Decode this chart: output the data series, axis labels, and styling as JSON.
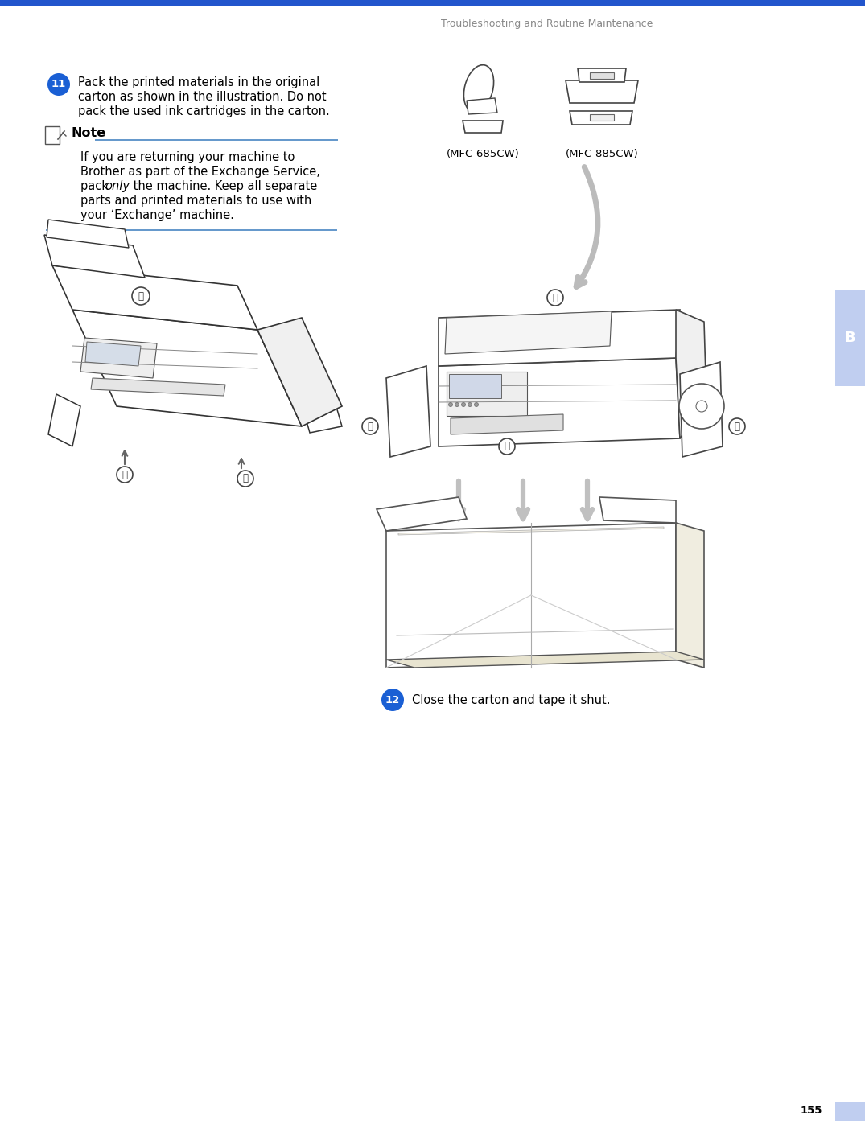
{
  "page_title": "Troubleshooting and Routine Maintenance",
  "page_number": "155",
  "step11_number": "11",
  "step12_number": "12",
  "step12_text": "Close the carton and tape it shut.",
  "label_mfc685": "(MFC-685CW)",
  "label_mfc885": "(MFC-885CW)",
  "sidebar_letter": "B",
  "top_bar_color": "#2255cc",
  "step_circle_color": "#1a5fd4",
  "step_text_color": "#000000",
  "note_line_color": "#6699cc",
  "sidebar_color": "#c0cef0",
  "page_bg": "#ffffff",
  "header_text_color": "#888888",
  "gray_arrow_color": "#aaaaaa",
  "line_art_color": "#333333",
  "note_title": "Note",
  "step11_line1": "Pack the printed materials in the original",
  "step11_line2": "carton as shown in the illustration. Do not",
  "step11_line3": "pack the used ink cartridges in the carton.",
  "note_line1": "If you are returning your machine to",
  "note_line2": "Brother as part of the Exchange Service,",
  "note_line3a": "pack ",
  "note_line3b": "only",
  "note_line3c": " the machine. Keep all separate",
  "note_line4": "parts and printed materials to use with",
  "note_line5": "your ‘Exchange’ machine."
}
